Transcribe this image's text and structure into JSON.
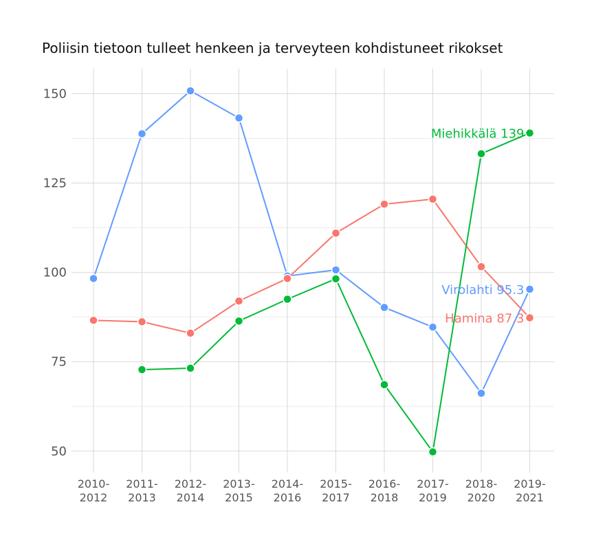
{
  "chart_data": {
    "type": "line",
    "title": "Poliisin tietoon tulleet henkeen ja terveyteen kohdistuneet rikokset",
    "xlabel": "",
    "ylabel": "",
    "categories": [
      "2010-2012",
      "2011-2013",
      "2012-2014",
      "2013-2015",
      "2014-2016",
      "2015-2017",
      "2016-2018",
      "2017-2019",
      "2018-2020",
      "2019-2021"
    ],
    "category_lines": [
      [
        "2010-",
        "2012"
      ],
      [
        "2011-",
        "2013"
      ],
      [
        "2012-",
        "2014"
      ],
      [
        "2013-",
        "2015"
      ],
      [
        "2014-",
        "2016"
      ],
      [
        "2015-",
        "2017"
      ],
      [
        "2016-",
        "2018"
      ],
      [
        "2017-",
        "2019"
      ],
      [
        "2018-",
        "2020"
      ],
      [
        "2019-",
        "2021"
      ]
    ],
    "ylim": [
      44,
      157
    ],
    "yticks": [
      50,
      75,
      100,
      125,
      150
    ],
    "grid": true,
    "legend": "none",
    "series": [
      {
        "name": "Virolahti",
        "color": "#619cff",
        "values": [
          98.3,
          138.8,
          150.8,
          143.2,
          99.0,
          100.7,
          90.2,
          84.7,
          66.2,
          95.3
        ],
        "end_label": "Virolahti 95.3"
      },
      {
        "name": "Hamina",
        "color": "#f8766d",
        "values": [
          86.6,
          86.2,
          83.0,
          92.0,
          98.3,
          111.0,
          119.1,
          120.5,
          101.6,
          87.3
        ],
        "end_label": "Hamina 87.3"
      },
      {
        "name": "Miehikkälä",
        "color": "#00ba38",
        "values": [
          null,
          72.8,
          73.2,
          86.4,
          92.5,
          98.2,
          68.6,
          49.8,
          133.2,
          139.0
        ],
        "end_label": "Miehikkälä 139"
      }
    ]
  }
}
